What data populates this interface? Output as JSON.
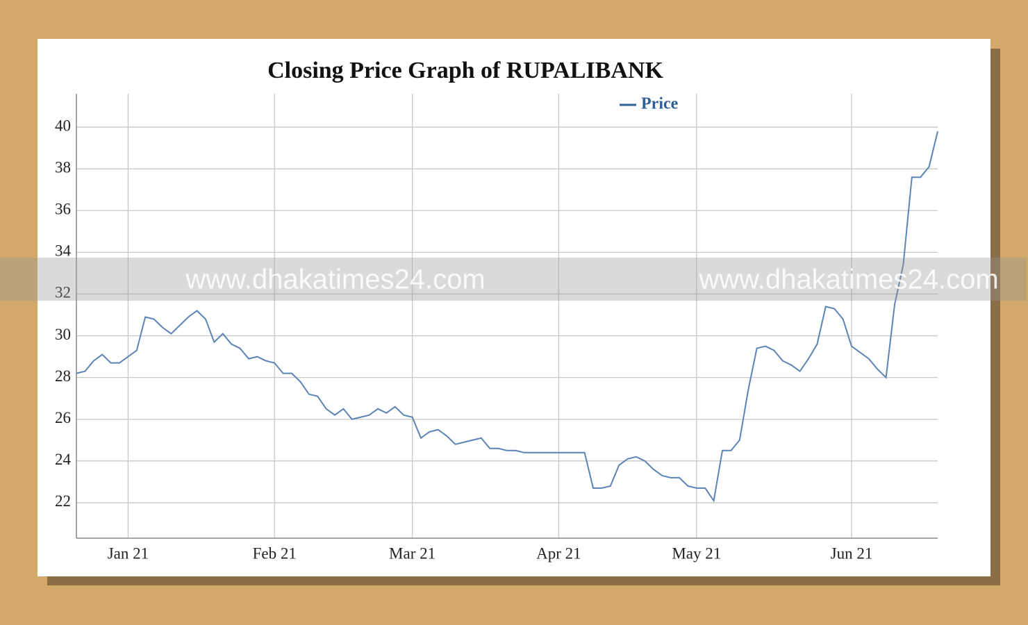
{
  "chart_data": {
    "type": "line",
    "title": "Closing Price Graph of RUPALIBANK",
    "watermark": "www.dhakatimes24.com",
    "categories": [
      null,
      null,
      null,
      null,
      null,
      null,
      "Jan 21",
      null,
      null,
      null,
      null,
      null,
      null,
      null,
      null,
      null,
      null,
      null,
      null,
      null,
      null,
      null,
      null,
      "Feb 21",
      null,
      null,
      null,
      null,
      null,
      null,
      null,
      null,
      null,
      null,
      null,
      null,
      null,
      null,
      null,
      "Mar 21",
      null,
      null,
      null,
      null,
      null,
      null,
      null,
      null,
      null,
      null,
      null,
      null,
      null,
      null,
      null,
      null,
      "Apr 21",
      null,
      null,
      null,
      null,
      null,
      null,
      null,
      null,
      null,
      null,
      null,
      null,
      null,
      null,
      null,
      "May 21",
      null,
      null,
      null,
      null,
      null,
      null,
      null,
      null,
      null,
      null,
      null,
      null,
      null,
      null,
      null,
      null,
      null,
      "Jun 21",
      null,
      null,
      null,
      null,
      null,
      null,
      null,
      null,
      null,
      null
    ],
    "series": [
      {
        "name": "Price",
        "color": "#5b84b6",
        "values": [
          28.2,
          28.3,
          28.8,
          29.1,
          28.7,
          28.7,
          29.0,
          29.3,
          30.9,
          30.8,
          30.4,
          30.1,
          30.5,
          30.9,
          31.2,
          30.8,
          29.7,
          30.1,
          29.6,
          29.4,
          28.9,
          29.0,
          28.8,
          28.7,
          28.2,
          28.2,
          27.8,
          27.2,
          27.1,
          26.5,
          26.2,
          26.5,
          26.0,
          26.1,
          26.2,
          26.5,
          26.3,
          26.6,
          26.2,
          26.1,
          25.1,
          25.4,
          25.5,
          25.2,
          24.8,
          24.9,
          25.0,
          25.1,
          24.6,
          24.6,
          24.5,
          24.5,
          24.4,
          24.4,
          24.4,
          24.4,
          24.4,
          24.4,
          24.4,
          24.4,
          22.7,
          22.7,
          22.8,
          23.8,
          24.1,
          24.2,
          24.0,
          23.6,
          23.3,
          23.2,
          23.2,
          22.8,
          22.7,
          22.7,
          22.1,
          24.5,
          24.5,
          25.0,
          27.4,
          29.4,
          29.5,
          29.3,
          28.8,
          28.6,
          28.3,
          28.9,
          29.6,
          31.4,
          31.3,
          30.8,
          29.5,
          29.2,
          28.9,
          28.4,
          28.0,
          31.5,
          33.4,
          37.6,
          37.6,
          38.1,
          39.8
        ]
      }
    ],
    "ylim": [
      20.3,
      41.6
    ],
    "yticks": [
      22,
      24,
      26,
      28,
      30,
      32,
      34,
      36,
      38,
      40
    ],
    "grid": true,
    "legend": "top-right"
  }
}
